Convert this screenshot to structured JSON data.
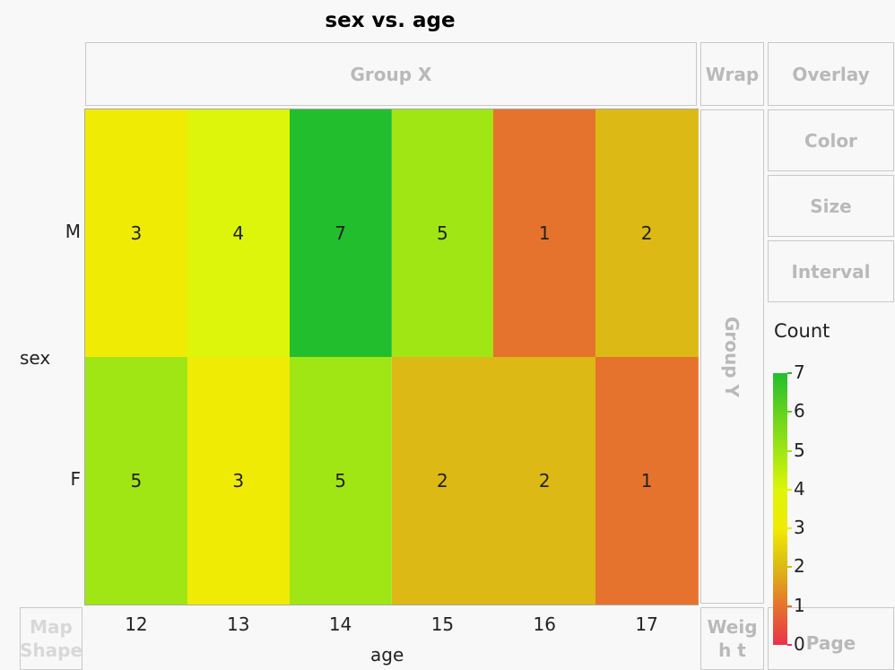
{
  "title": "sex vs. age",
  "zones": {
    "group_x": "Group X",
    "wrap": "Wrap",
    "overlay": "Overlay",
    "color": "Color",
    "size": "Size",
    "interval": "Interval",
    "group_y": "Group Y",
    "map_shape": "Map Shape",
    "weight": "Weigh t",
    "page": "Page"
  },
  "chart_data": {
    "type": "heatmap",
    "title": "sex vs. age",
    "xlabel": "age",
    "ylabel": "sex",
    "x_categories": [
      "12",
      "13",
      "14",
      "15",
      "16",
      "17"
    ],
    "y_categories": [
      "M",
      "F"
    ],
    "values": [
      [
        3,
        4,
        7,
        5,
        1,
        2
      ],
      [
        5,
        3,
        5,
        2,
        2,
        1
      ]
    ],
    "legend": {
      "title": "Count",
      "ticks": [
        "0",
        "1",
        "2",
        "3",
        "4",
        "5",
        "6",
        "7"
      ],
      "range": [
        0,
        7
      ],
      "placement": "right"
    },
    "colorscale": [
      "#e8334a",
      "#e6732d",
      "#dcb914",
      "#f0eb05",
      "#dcf50a",
      "#a0e614",
      "#64d21e",
      "#23be2d"
    ]
  }
}
